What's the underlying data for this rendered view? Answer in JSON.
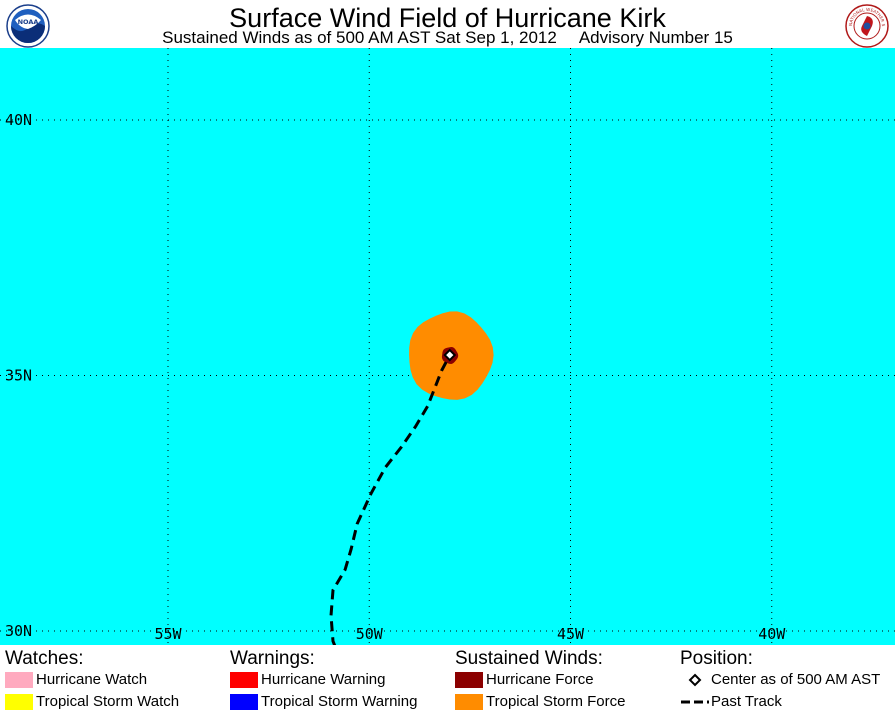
{
  "header": {
    "title": "Surface Wind Field of Hurricane Kirk",
    "subtitle_time": "Sustained Winds as of 500 AM AST Sat Sep 1, 2012",
    "subtitle_advisory": "Advisory Number 15"
  },
  "logos": {
    "left": "noaa-logo",
    "right": "national-weather-service-logo",
    "right_text": "NATIONAL WEATHER SERVICE"
  },
  "map": {
    "background_color": "#00ffff",
    "gridlines": "dotted",
    "lat_labels": [
      "40N",
      "35N",
      "30N"
    ],
    "lon_labels": [
      "55W",
      "50W",
      "45W",
      "40W"
    ],
    "center_lat": 35.4,
    "center_lon": 48.0,
    "tropical_storm_radius_deg": 1.05,
    "hurricane_radius_deg": 0.2,
    "past_track": [
      [
        29.4,
        50.7
      ],
      [
        29.8,
        50.9
      ],
      [
        30.3,
        50.95
      ],
      [
        30.8,
        50.9
      ],
      [
        31.2,
        50.6
      ],
      [
        31.6,
        50.45
      ],
      [
        32.1,
        50.3
      ],
      [
        32.7,
        49.95
      ],
      [
        33.2,
        49.6
      ],
      [
        33.6,
        49.2
      ],
      [
        34.0,
        48.85
      ],
      [
        34.4,
        48.55
      ],
      [
        34.8,
        48.35
      ],
      [
        35.1,
        48.2
      ],
      [
        35.4,
        48.0
      ]
    ]
  },
  "legend": {
    "watches": {
      "heading": "Watches:",
      "items": [
        {
          "label": "Hurricane Watch",
          "color": "#ffaabf"
        },
        {
          "label": "Tropical Storm Watch",
          "color": "#ffff00"
        }
      ]
    },
    "warnings": {
      "heading": "Warnings:",
      "items": [
        {
          "label": "Hurricane Warning",
          "color": "#ff0000"
        },
        {
          "label": "Tropical Storm Warning",
          "color": "#0000ff"
        }
      ]
    },
    "winds": {
      "heading": "Sustained Winds:",
      "items": [
        {
          "label": "Hurricane Force",
          "color": "#8b0000"
        },
        {
          "label": "Tropical Storm Force",
          "color": "#ff8c00"
        }
      ]
    },
    "position": {
      "heading": "Position:",
      "items": [
        {
          "label": "Center as of 500 AM AST",
          "icon": "diamond-icon"
        },
        {
          "label": "Past Track",
          "icon": "dashed-line-icon"
        }
      ]
    }
  }
}
